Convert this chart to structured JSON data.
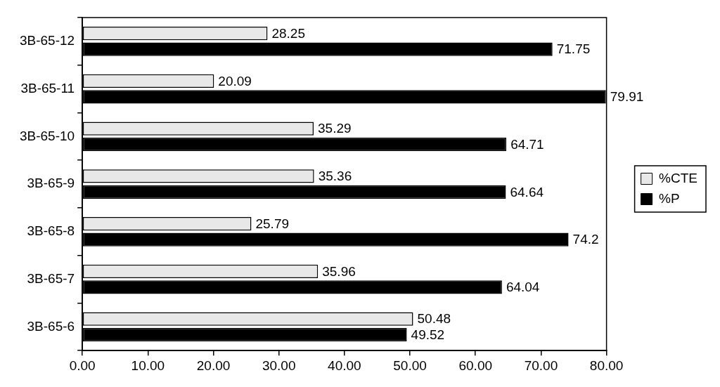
{
  "chart_data": {
    "type": "bar",
    "orientation": "horizontal",
    "categories": [
      "3B-65-12",
      "3B-65-11",
      "3B-65-10",
      "3B-65-9",
      "3B-65-8",
      "3B-65-7",
      "3B-65-6"
    ],
    "series": [
      {
        "name": "%CTE",
        "color": "#e8e8e8",
        "values": [
          28.25,
          20.09,
          35.29,
          35.36,
          25.79,
          35.96,
          50.48
        ]
      },
      {
        "name": "%P",
        "color": "#000000",
        "values": [
          71.75,
          79.91,
          64.71,
          64.64,
          74.2,
          64.04,
          49.52
        ]
      }
    ],
    "xlim": [
      0,
      80
    ],
    "xticks": [
      {
        "value": 0,
        "label": "0.00"
      },
      {
        "value": 10,
        "label": "10.00"
      },
      {
        "value": 20,
        "label": "20.00"
      },
      {
        "value": 30,
        "label": "30.00"
      },
      {
        "value": 40,
        "label": "40.00"
      },
      {
        "value": 50,
        "label": "50.00"
      },
      {
        "value": 60,
        "label": "60.00"
      },
      {
        "value": 70,
        "label": "70.00"
      },
      {
        "value": 80,
        "label": "80.00"
      }
    ],
    "legend": "right",
    "data_labels": true
  }
}
